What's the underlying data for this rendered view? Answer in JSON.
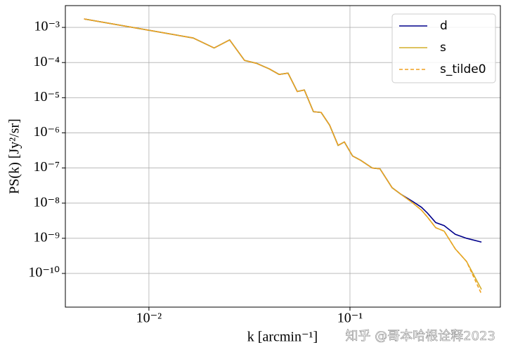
{
  "chart_data": {
    "type": "line",
    "x_label": "k [arcmin⁻¹]",
    "y_label": "PS(k) [Jy²/sr]",
    "x": [
      0.00476,
      0.0166,
      0.0211,
      0.0252,
      0.0299,
      0.0343,
      0.0397,
      0.0444,
      0.0492,
      0.0547,
      0.0593,
      0.0658,
      0.0719,
      0.0792,
      0.0873,
      0.0938,
      0.103,
      0.113,
      0.129,
      0.141,
      0.162,
      0.179,
      0.206,
      0.227,
      0.243,
      0.267,
      0.294,
      0.334,
      0.38,
      0.451
    ],
    "series": [
      {
        "name": "d",
        "color": "#00008b",
        "dash": false,
        "values": [
          0.00174,
          0.0005,
          0.00026,
          0.00044,
          0.000115,
          9.5e-05,
          6.6e-05,
          4.6e-05,
          5e-05,
          1.5e-05,
          1.66e-05,
          4e-06,
          3.8e-06,
          1.66e-06,
          4.4e-07,
          5.5e-07,
          2.2e-07,
          1.66e-07,
          1e-07,
          9.5e-08,
          2.75e-08,
          1.8e-08,
          1.1e-08,
          7.6e-09,
          5.2e-09,
          2.8e-09,
          2.3e-09,
          1.3e-09,
          1e-09,
          7.8e-10
        ]
      },
      {
        "name": "s",
        "color": "#d4ae2a",
        "dash": false,
        "values": [
          0.00174,
          0.0005,
          0.00026,
          0.00044,
          0.000115,
          9.5e-05,
          6.6e-05,
          4.6e-05,
          5e-05,
          1.5e-05,
          1.66e-05,
          4e-06,
          3.8e-06,
          1.66e-06,
          4.4e-07,
          5.5e-07,
          2.2e-07,
          1.66e-07,
          1e-07,
          9.5e-08,
          2.75e-08,
          1.8e-08,
          1e-08,
          6.3e-09,
          4e-09,
          2e-09,
          1.6e-09,
          5e-10,
          2.2e-10,
          3.5e-11
        ]
      },
      {
        "name": "s_tilde0",
        "color": "#f0a020",
        "dash": true,
        "values": [
          0.00174,
          0.0005,
          0.00026,
          0.00044,
          0.000115,
          9.5e-05,
          6.6e-05,
          4.6e-05,
          5e-05,
          1.5e-05,
          1.66e-05,
          4e-06,
          3.8e-06,
          1.66e-06,
          4.4e-07,
          5.5e-07,
          2.2e-07,
          1.66e-07,
          1e-07,
          9.5e-08,
          2.75e-08,
          1.8e-08,
          1e-08,
          6.3e-09,
          4e-09,
          2e-09,
          1.6e-09,
          5e-10,
          2.2e-10,
          2.6e-11
        ]
      }
    ],
    "x_log": true,
    "y_log": true,
    "xlim": [
      0.00384,
      0.56
    ],
    "ylim": [
      1.1e-11,
      0.00417
    ],
    "xticks": [
      {
        "value": 0.01,
        "label": "10⁻²"
      },
      {
        "value": 0.1,
        "label": "10⁻¹"
      }
    ],
    "yticks": [
      {
        "value": 0.001,
        "label": "10⁻³"
      },
      {
        "value": 0.0001,
        "label": "10⁻⁴"
      },
      {
        "value": 1e-05,
        "label": "10⁻⁵"
      },
      {
        "value": 1e-06,
        "label": "10⁻⁶"
      },
      {
        "value": 1e-07,
        "label": "10⁻⁷"
      },
      {
        "value": 1e-08,
        "label": "10⁻⁸"
      },
      {
        "value": 1e-09,
        "label": "10⁻⁹"
      },
      {
        "value": 1e-10,
        "label": "10⁻¹⁰"
      }
    ],
    "grid": true,
    "legend": "upper right"
  },
  "watermark": "知乎 @哥本哈根诠释2023"
}
